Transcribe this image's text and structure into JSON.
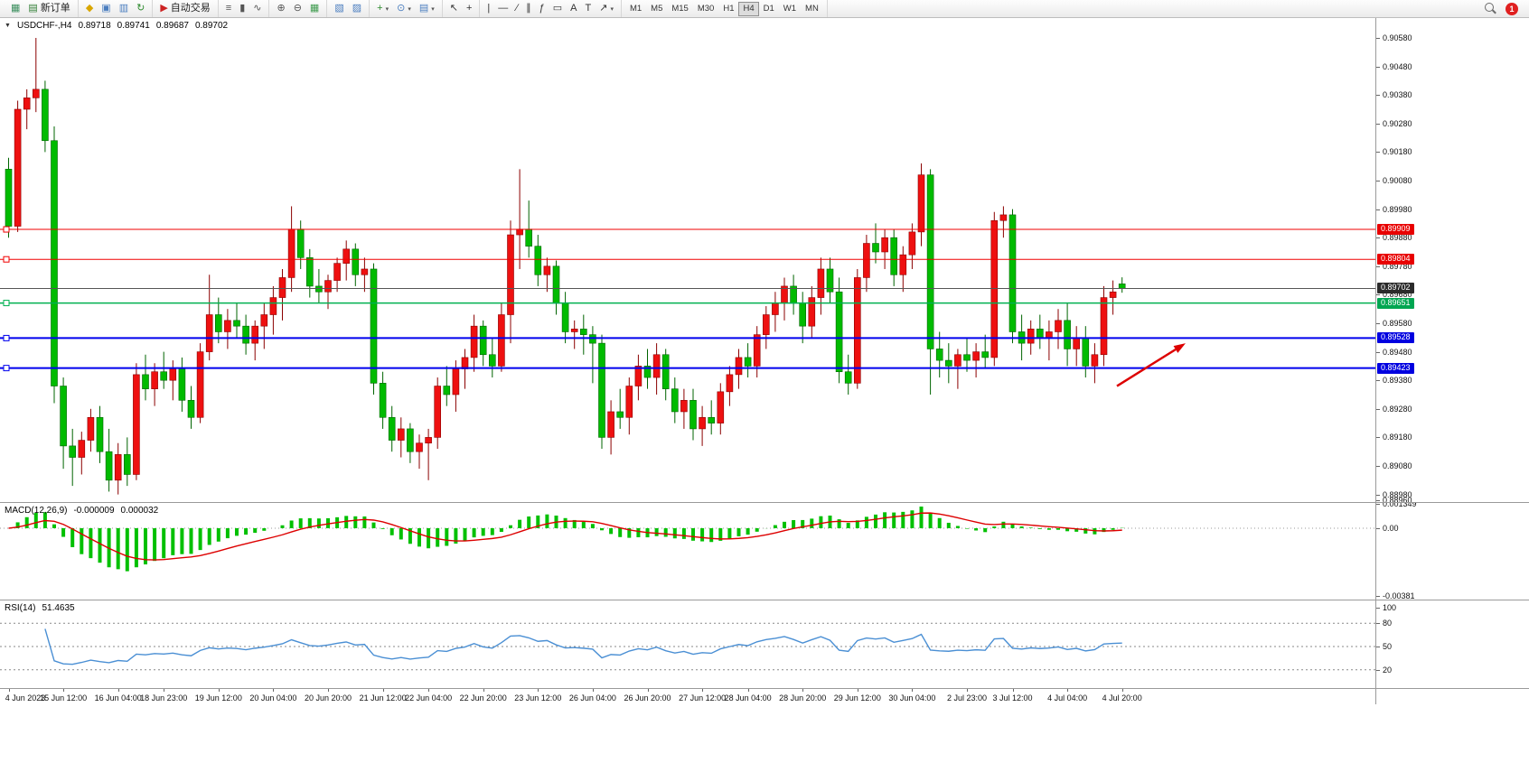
{
  "toolbar": {
    "groups": [
      {
        "name": "order-group",
        "items": [
          {
            "name": "symbol-chart-button",
            "glyph": "▦",
            "color": "#3d8f5f"
          },
          {
            "name": "new-order-button",
            "glyph": "▤",
            "color": "#2e7d32",
            "label": "新订单"
          }
        ]
      },
      {
        "name": "profile-group",
        "items": [
          {
            "name": "profiles-button",
            "glyph": "◆",
            "color": "#d9a600"
          },
          {
            "name": "print-button",
            "glyph": "▣",
            "color": "#4a7dbf"
          },
          {
            "name": "data-window-button",
            "glyph": "▥",
            "color": "#4a7dbf"
          },
          {
            "name": "refresh-button",
            "glyph": "↻",
            "color": "#2e8b2e"
          }
        ]
      },
      {
        "name": "autotrade-group",
        "items": [
          {
            "name": "autotrade-button",
            "glyph": "▶",
            "color": "#cc2222",
            "label": "自动交易"
          }
        ]
      },
      {
        "name": "chart-type-group",
        "items": [
          {
            "name": "bar-chart-button",
            "glyph": "≡",
            "color": "#555555"
          },
          {
            "name": "candlestick-chart-button",
            "glyph": "▮",
            "color": "#555555"
          },
          {
            "name": "line-chart-button",
            "glyph": "∿",
            "color": "#555555"
          }
        ]
      },
      {
        "name": "zoom-group",
        "items": [
          {
            "name": "zoom-in-button",
            "glyph": "⊕",
            "color": "#555555"
          },
          {
            "name": "zoom-out-button",
            "glyph": "⊖",
            "color": "#555555"
          },
          {
            "name": "tile-windows-button",
            "glyph": "▦",
            "color": "#3f9b4f"
          }
        ]
      },
      {
        "name": "window-group",
        "items": [
          {
            "name": "auto-arrange-button",
            "glyph": "▧",
            "color": "#4a7dbf"
          },
          {
            "name": "cascade-button",
            "glyph": "▨",
            "color": "#4a7dbf"
          }
        ]
      },
      {
        "name": "objects-group",
        "items": [
          {
            "name": "add-chart-button",
            "glyph": "+",
            "color": "#2e8b2e",
            "dropdown": true
          },
          {
            "name": "period-button",
            "glyph": "⊙",
            "color": "#4a7dbf",
            "dropdown": true
          },
          {
            "name": "template-button",
            "glyph": "▤",
            "color": "#4a7dbf",
            "dropdown": true
          }
        ]
      },
      {
        "name": "cursor-group",
        "items": [
          {
            "name": "cursor-button",
            "glyph": "↖",
            "color": "#333333"
          },
          {
            "name": "crosshair-button",
            "glyph": "+",
            "color": "#333333"
          }
        ]
      },
      {
        "name": "draw-group",
        "items": [
          {
            "name": "vertical-line-button",
            "glyph": "|",
            "color": "#333333"
          },
          {
            "name": "horizontal-line-button",
            "glyph": "—",
            "color": "#333333"
          },
          {
            "name": "trendline-button",
            "glyph": "∕",
            "color": "#333333"
          },
          {
            "name": "channel-button",
            "glyph": "∥",
            "color": "#333333"
          },
          {
            "name": "fibonacci-button",
            "glyph": "ƒ",
            "color": "#333333"
          },
          {
            "name": "shapes-button",
            "glyph": "▭",
            "color": "#333333"
          },
          {
            "name": "text-button",
            "glyph": "A",
            "color": "#333333"
          },
          {
            "name": "text-label-button",
            "glyph": "T",
            "color": "#333333"
          },
          {
            "name": "arrows-button",
            "glyph": "↗",
            "color": "#333333",
            "dropdown": true
          }
        ]
      }
    ],
    "timeframes": {
      "items": [
        "M1",
        "M5",
        "M15",
        "M30",
        "H1",
        "H4",
        "D1",
        "W1",
        "MN"
      ],
      "active": "H4"
    },
    "notification_badge": "1"
  },
  "chart": {
    "title": {
      "collapse_glyph": "▼",
      "symbol": "USDCHF-,H4",
      "open": "0.89718",
      "high": "0.89741",
      "low": "0.89687",
      "close": "0.89702"
    },
    "price_axis_labels": [
      "0.90580",
      "0.90480",
      "0.90380",
      "0.90280",
      "0.90180",
      "0.90080",
      "0.89980",
      "0.89880",
      "0.89780",
      "0.89680",
      "0.89580",
      "0.89480",
      "0.89380",
      "0.89280",
      "0.89180",
      "0.89080",
      "0.88980",
      "0.88960"
    ],
    "price_tags": [
      {
        "value": "0.89909",
        "price": 0.89909,
        "color": "#e80000"
      },
      {
        "value": "0.89804",
        "price": 0.89804,
        "color": "#e80000"
      },
      {
        "value": "0.89702",
        "price": 0.89702,
        "color": "#2b2b2b"
      },
      {
        "value": "0.89651",
        "price": 0.89651,
        "color": "#00a651"
      },
      {
        "value": "0.89528",
        "price": 0.89528,
        "color": "#0000e0"
      },
      {
        "value": "0.89423",
        "price": 0.89423,
        "color": "#0000e0"
      }
    ],
    "hlines": [
      {
        "name": "resistance-line-1",
        "price": 0.89909,
        "color": "#f00000",
        "width": 1,
        "marker": true
      },
      {
        "name": "resistance-line-2",
        "price": 0.89804,
        "color": "#f00000",
        "width": 1,
        "marker": true
      },
      {
        "name": "bid-price-line",
        "price": 0.89702,
        "color": "#555555",
        "width": 1,
        "marker": false
      },
      {
        "name": "support-line-green",
        "price": 0.89651,
        "color": "#00b050",
        "width": 1.5,
        "marker": true
      },
      {
        "name": "support-line-blue-1",
        "price": 0.89528,
        "color": "#0000ee",
        "width": 2,
        "marker": true
      },
      {
        "name": "support-line-blue-2",
        "price": 0.89423,
        "color": "#0000ee",
        "width": 2,
        "marker": true
      }
    ],
    "arrow_annotation": {
      "from": {
        "x": 1236,
        "price": 0.8936
      },
      "to": {
        "x": 1312,
        "price": 0.8951
      },
      "color": "#dd0000"
    }
  },
  "macd": {
    "label": "MACD(12,26,9)",
    "value_main": "-0.000009",
    "value_signal": "0.000032",
    "axis_labels": [
      "0.001349",
      "0.00",
      "-0.00381"
    ],
    "params": {
      "fast": 12,
      "slow": 26,
      "signal": 9
    },
    "histogram_color": "#00c000",
    "signal_color": "#dd0000"
  },
  "rsi": {
    "label": "RSI(14)",
    "value": "51.4635",
    "period": 14,
    "axis_labels": [
      "100",
      "80",
      "50",
      "20"
    ],
    "levels": [
      80,
      50,
      20
    ],
    "line_color": "#4a8fd4"
  },
  "chart_data": {
    "type": "candlestick",
    "symbol": "USDCHF-",
    "timeframe": "H4",
    "title": "USDCHF-,H4",
    "ohlc_current": {
      "open": 0.89718,
      "high": 0.89741,
      "low": 0.89687,
      "close": 0.89702
    },
    "y_range": [
      0.8896,
      0.9058
    ],
    "bull_color": "#ee1010",
    "bear_color": "#00bb00",
    "x_labels": [
      "4 Jun 2023",
      "15 Jun 12:00",
      "16 Jun 04:00",
      "18 Jun 23:00",
      "19 Jun 12:00",
      "20 Jun 04:00",
      "20 Jun 20:00",
      "21 Jun 12:00",
      "22 Jun 04:00",
      "22 Jun 20:00",
      "23 Jun 12:00",
      "26 Jun 04:00",
      "26 Jun 20:00",
      "27 Jun 12:00",
      "28 Jun 04:00",
      "28 Jun 20:00",
      "29 Jun 12:00",
      "30 Jun 04:00",
      "2 Jul 23:00",
      "3 Jul 12:00",
      "4 Jul 04:00",
      "4 Jul 20:00"
    ],
    "indicators": [
      {
        "type": "MACD",
        "params": [
          12,
          26,
          9
        ]
      },
      {
        "type": "RSI",
        "params": [
          14
        ]
      }
    ],
    "candles": [
      [
        0.9012,
        0.9016,
        0.8988,
        0.8992
      ],
      [
        0.8992,
        0.9036,
        0.899,
        0.9033
      ],
      [
        0.9033,
        0.904,
        0.9026,
        0.9037
      ],
      [
        0.9037,
        0.9058,
        0.9032,
        0.904
      ],
      [
        0.904,
        0.9043,
        0.9018,
        0.9022
      ],
      [
        0.9022,
        0.9027,
        0.893,
        0.8936
      ],
      [
        0.8936,
        0.8939,
        0.8907,
        0.8915
      ],
      [
        0.8915,
        0.8921,
        0.8901,
        0.8911
      ],
      [
        0.8911,
        0.892,
        0.8905,
        0.8917
      ],
      [
        0.8917,
        0.8928,
        0.8913,
        0.8925
      ],
      [
        0.8925,
        0.8929,
        0.8909,
        0.8913
      ],
      [
        0.8913,
        0.8921,
        0.8899,
        0.8903
      ],
      [
        0.8903,
        0.8916,
        0.8898,
        0.8912
      ],
      [
        0.8912,
        0.8918,
        0.8901,
        0.8905
      ],
      [
        0.8905,
        0.8944,
        0.8903,
        0.894
      ],
      [
        0.894,
        0.8947,
        0.8931,
        0.8935
      ],
      [
        0.8935,
        0.8944,
        0.8929,
        0.8941
      ],
      [
        0.8941,
        0.8948,
        0.8935,
        0.8938
      ],
      [
        0.8938,
        0.8945,
        0.8931,
        0.8942
      ],
      [
        0.8942,
        0.8946,
        0.8927,
        0.8931
      ],
      [
        0.8931,
        0.8936,
        0.8921,
        0.8925
      ],
      [
        0.8925,
        0.8951,
        0.8923,
        0.8948
      ],
      [
        0.8948,
        0.8975,
        0.8945,
        0.8961
      ],
      [
        0.8961,
        0.8967,
        0.8951,
        0.8955
      ],
      [
        0.8955,
        0.8963,
        0.8949,
        0.8959
      ],
      [
        0.8959,
        0.8965,
        0.8953,
        0.8957
      ],
      [
        0.8957,
        0.8961,
        0.8947,
        0.8951
      ],
      [
        0.8951,
        0.8959,
        0.8945,
        0.8957
      ],
      [
        0.8957,
        0.8965,
        0.8949,
        0.8961
      ],
      [
        0.8961,
        0.8971,
        0.8954,
        0.8967
      ],
      [
        0.8967,
        0.8977,
        0.8959,
        0.8974
      ],
      [
        0.8974,
        0.8999,
        0.8969,
        0.8991
      ],
      [
        0.8991,
        0.8994,
        0.8977,
        0.8981
      ],
      [
        0.8981,
        0.8984,
        0.8967,
        0.8971
      ],
      [
        0.8971,
        0.8977,
        0.8965,
        0.8969
      ],
      [
        0.8969,
        0.8975,
        0.8963,
        0.8973
      ],
      [
        0.8973,
        0.8981,
        0.8969,
        0.8979
      ],
      [
        0.8979,
        0.8987,
        0.8973,
        0.8984
      ],
      [
        0.8984,
        0.8986,
        0.8971,
        0.8975
      ],
      [
        0.8975,
        0.8981,
        0.8969,
        0.8977
      ],
      [
        0.8977,
        0.8979,
        0.8933,
        0.8937
      ],
      [
        0.8937,
        0.8941,
        0.8921,
        0.8925
      ],
      [
        0.8925,
        0.8929,
        0.8913,
        0.8917
      ],
      [
        0.8917,
        0.8925,
        0.8911,
        0.8921
      ],
      [
        0.8921,
        0.8923,
        0.8909,
        0.8913
      ],
      [
        0.8913,
        0.8919,
        0.8907,
        0.8916
      ],
      [
        0.8916,
        0.8921,
        0.8903,
        0.8918
      ],
      [
        0.8918,
        0.8939,
        0.8914,
        0.8936
      ],
      [
        0.8936,
        0.8943,
        0.8929,
        0.8933
      ],
      [
        0.8933,
        0.8945,
        0.8927,
        0.8942
      ],
      [
        0.8942,
        0.8949,
        0.8935,
        0.8946
      ],
      [
        0.8946,
        0.8961,
        0.8941,
        0.8957
      ],
      [
        0.8957,
        0.8959,
        0.8943,
        0.8947
      ],
      [
        0.8947,
        0.8953,
        0.8939,
        0.8943
      ],
      [
        0.8943,
        0.8965,
        0.8941,
        0.8961
      ],
      [
        0.8961,
        0.8994,
        0.8951,
        0.8989
      ],
      [
        0.8989,
        0.9012,
        0.8977,
        0.8991
      ],
      [
        0.8991,
        0.9001,
        0.8981,
        0.8985
      ],
      [
        0.8985,
        0.8989,
        0.8971,
        0.8975
      ],
      [
        0.8975,
        0.8981,
        0.8969,
        0.8978
      ],
      [
        0.8978,
        0.898,
        0.8961,
        0.8965
      ],
      [
        0.8965,
        0.8969,
        0.8951,
        0.8955
      ],
      [
        0.8955,
        0.8959,
        0.8949,
        0.8956
      ],
      [
        0.8956,
        0.8961,
        0.8947,
        0.8954
      ],
      [
        0.8954,
        0.8957,
        0.8937,
        0.8951
      ],
      [
        0.8951,
        0.8954,
        0.8914,
        0.8918
      ],
      [
        0.8918,
        0.8931,
        0.8912,
        0.8927
      ],
      [
        0.8927,
        0.8935,
        0.8921,
        0.8925
      ],
      [
        0.8925,
        0.8939,
        0.8919,
        0.8936
      ],
      [
        0.8936,
        0.8947,
        0.8931,
        0.8943
      ],
      [
        0.8943,
        0.8949,
        0.8935,
        0.8939
      ],
      [
        0.8939,
        0.8951,
        0.8933,
        0.8947
      ],
      [
        0.8947,
        0.8949,
        0.8931,
        0.8935
      ],
      [
        0.8935,
        0.8939,
        0.8923,
        0.8927
      ],
      [
        0.8927,
        0.8935,
        0.8921,
        0.8931
      ],
      [
        0.8931,
        0.8935,
        0.8917,
        0.8921
      ],
      [
        0.8921,
        0.8929,
        0.8915,
        0.8925
      ],
      [
        0.8925,
        0.8931,
        0.8919,
        0.8923
      ],
      [
        0.8923,
        0.8937,
        0.8919,
        0.8934
      ],
      [
        0.8934,
        0.8943,
        0.8929,
        0.894
      ],
      [
        0.894,
        0.8949,
        0.8935,
        0.8946
      ],
      [
        0.8946,
        0.8951,
        0.8939,
        0.8943
      ],
      [
        0.8943,
        0.8957,
        0.8939,
        0.8954
      ],
      [
        0.8954,
        0.8964,
        0.8949,
        0.8961
      ],
      [
        0.8961,
        0.8969,
        0.8955,
        0.8965
      ],
      [
        0.8965,
        0.8974,
        0.8959,
        0.8971
      ],
      [
        0.8971,
        0.8975,
        0.8961,
        0.8965
      ],
      [
        0.8965,
        0.8969,
        0.8951,
        0.8957
      ],
      [
        0.8957,
        0.8971,
        0.8953,
        0.8967
      ],
      [
        0.8967,
        0.8981,
        0.8961,
        0.8977
      ],
      [
        0.8977,
        0.8981,
        0.8965,
        0.8969
      ],
      [
        0.8969,
        0.8974,
        0.8937,
        0.8941
      ],
      [
        0.8941,
        0.8947,
        0.8933,
        0.8937
      ],
      [
        0.8937,
        0.8977,
        0.8935,
        0.8974
      ],
      [
        0.8974,
        0.8989,
        0.8969,
        0.8986
      ],
      [
        0.8986,
        0.8993,
        0.8979,
        0.8983
      ],
      [
        0.8983,
        0.8991,
        0.8977,
        0.8988
      ],
      [
        0.8988,
        0.8991,
        0.8971,
        0.8975
      ],
      [
        0.8975,
        0.8985,
        0.8969,
        0.8982
      ],
      [
        0.8982,
        0.8993,
        0.8977,
        0.899
      ],
      [
        0.899,
        0.9014,
        0.8985,
        0.901
      ],
      [
        0.901,
        0.9012,
        0.8933,
        0.8949
      ],
      [
        0.8949,
        0.8955,
        0.8939,
        0.8945
      ],
      [
        0.8945,
        0.8951,
        0.8937,
        0.8943
      ],
      [
        0.8943,
        0.8949,
        0.8935,
        0.8947
      ],
      [
        0.8947,
        0.8953,
        0.8941,
        0.8945
      ],
      [
        0.8945,
        0.8951,
        0.8939,
        0.8948
      ],
      [
        0.8948,
        0.8954,
        0.8942,
        0.8946
      ],
      [
        0.8946,
        0.8997,
        0.8943,
        0.8994
      ],
      [
        0.8994,
        0.8999,
        0.8988,
        0.8996
      ],
      [
        0.8996,
        0.8998,
        0.8951,
        0.8955
      ],
      [
        0.8955,
        0.8961,
        0.8945,
        0.8951
      ],
      [
        0.8951,
        0.8959,
        0.8947,
        0.8956
      ],
      [
        0.8956,
        0.8961,
        0.8949,
        0.8953
      ],
      [
        0.8953,
        0.8959,
        0.8945,
        0.8955
      ],
      [
        0.8955,
        0.8963,
        0.8949,
        0.8959
      ],
      [
        0.8959,
        0.8965,
        0.8943,
        0.8949
      ],
      [
        0.8949,
        0.8957,
        0.8943,
        0.8953
      ],
      [
        0.8953,
        0.8957,
        0.8939,
        0.8943
      ],
      [
        0.8943,
        0.8951,
        0.8937,
        0.8947
      ],
      [
        0.8947,
        0.8971,
        0.8943,
        0.8967
      ],
      [
        0.8967,
        0.8973,
        0.8961,
        0.8969
      ],
      [
        0.89718,
        0.89741,
        0.89687,
        0.89702
      ]
    ]
  }
}
